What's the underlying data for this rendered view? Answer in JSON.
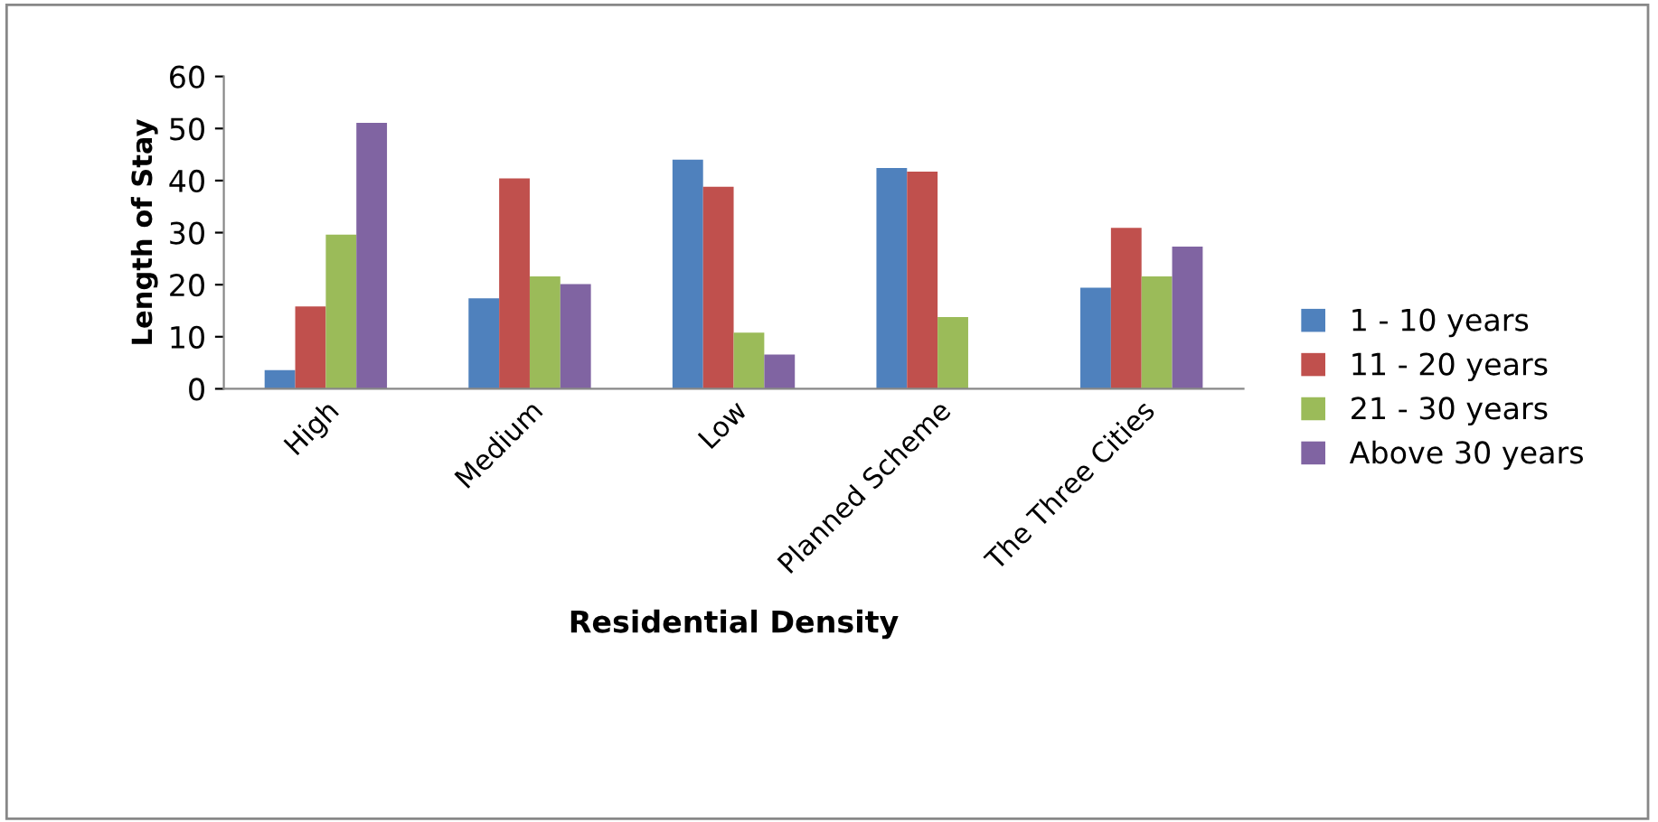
{
  "chart_data": {
    "type": "bar",
    "xlabel": "Residential Density",
    "ylabel": "Length of Stay",
    "categories": [
      "High",
      "Medium",
      "Low",
      "Planned Scheme",
      "The Three Cities"
    ],
    "series": [
      {
        "name": "1 - 10 years",
        "color": "#4f81bd",
        "values": [
          3.6,
          17.4,
          44,
          42.4,
          19.4
        ]
      },
      {
        "name": "11 - 20 years",
        "color": "#c0504d",
        "values": [
          15.8,
          40.4,
          38.8,
          41.7,
          30.9
        ]
      },
      {
        "name": "21 - 30 years",
        "color": "#9bbb59",
        "values": [
          29.6,
          21.6,
          10.8,
          13.8,
          21.6
        ]
      },
      {
        "name": "Above 30 years",
        "color": "#8064a2",
        "values": [
          51.1,
          20.1,
          6.6,
          null,
          27.3
        ]
      }
    ],
    "ylim": [
      0,
      60
    ],
    "yticks": [
      0,
      10,
      20,
      30,
      40,
      50,
      60
    ],
    "grid": false,
    "legend": "right"
  }
}
